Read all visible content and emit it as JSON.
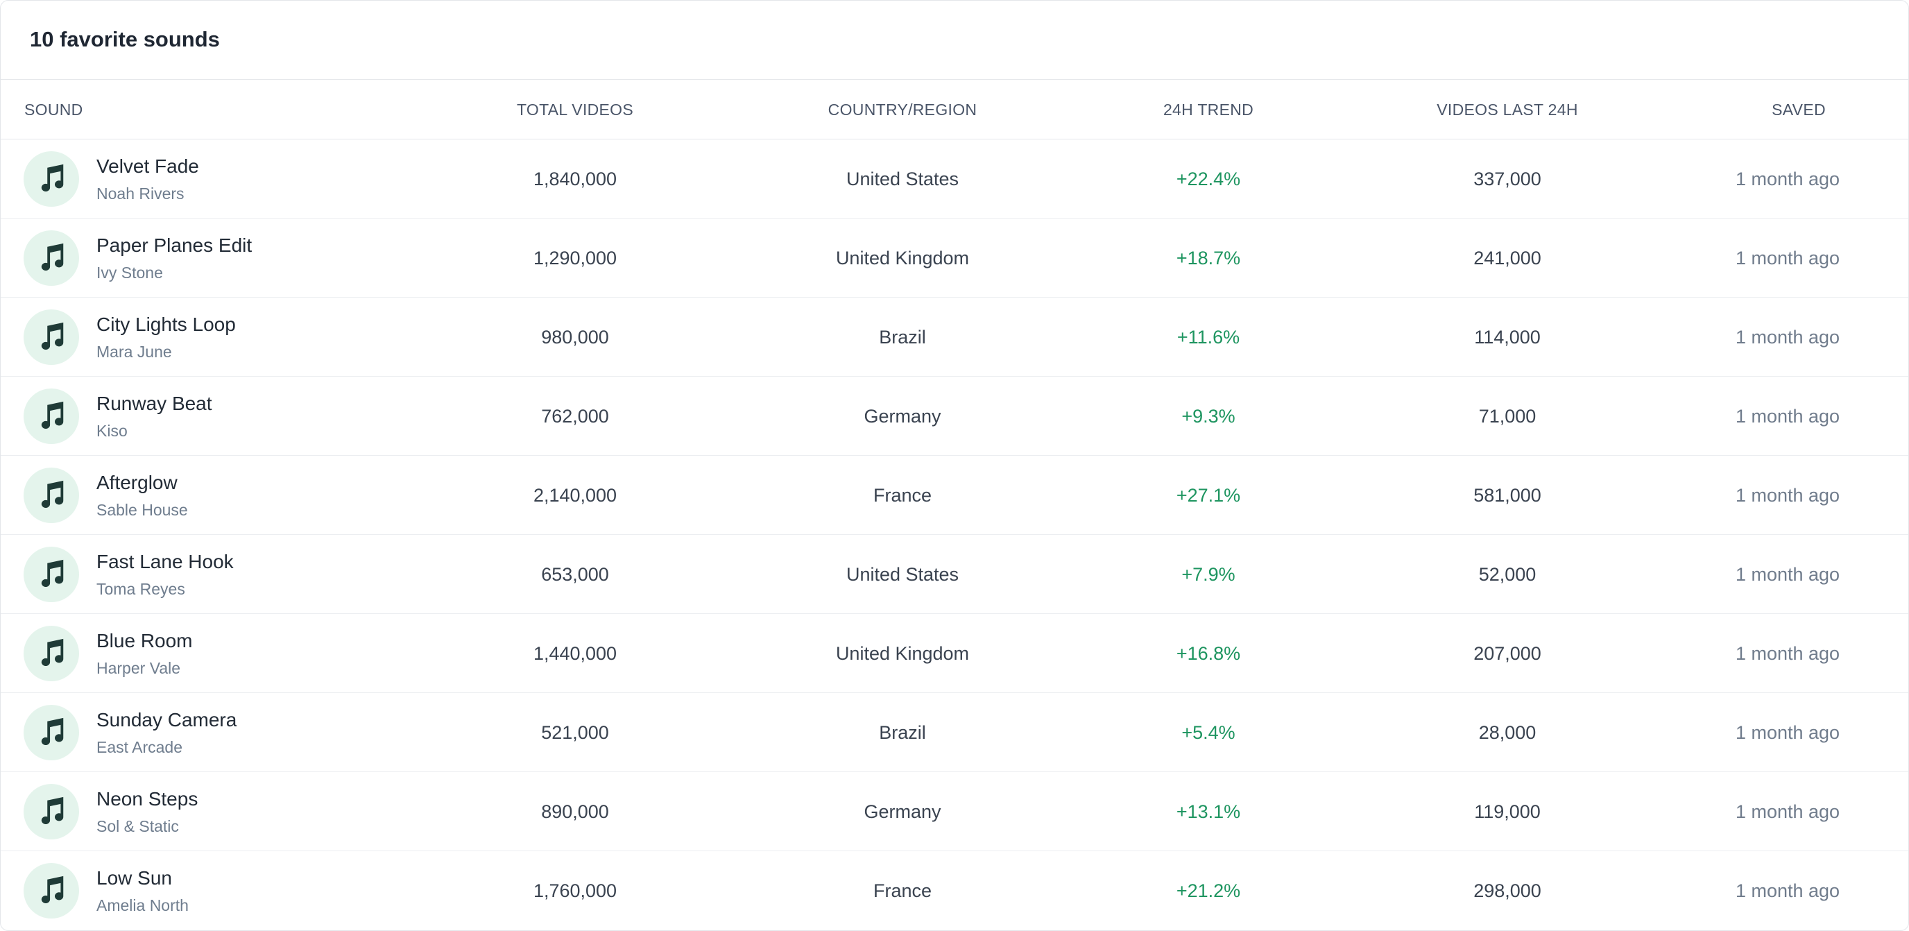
{
  "header": {
    "title": "10 favorite sounds"
  },
  "columns": {
    "sound": "SOUND",
    "total_videos": "TOTAL VIDEOS",
    "country": "COUNTRY/REGION",
    "trend": "24H TREND",
    "last24": "VIDEOS LAST 24H",
    "saved": "SAVED"
  },
  "colors": {
    "trend_positive": "#1e9560",
    "icon_bg": "#e4f4ec",
    "icon_fg": "#1f3b37"
  },
  "icon": "music-note-icon",
  "rows": [
    {
      "name": "Velvet Fade",
      "artist": "Noah Rivers",
      "total_videos": "1,840,000",
      "country": "United States",
      "trend": "+22.4%",
      "last24": "337,000",
      "saved": "1 month ago"
    },
    {
      "name": "Paper Planes Edit",
      "artist": "Ivy Stone",
      "total_videos": "1,290,000",
      "country": "United Kingdom",
      "trend": "+18.7%",
      "last24": "241,000",
      "saved": "1 month ago"
    },
    {
      "name": "City Lights Loop",
      "artist": "Mara June",
      "total_videos": "980,000",
      "country": "Brazil",
      "trend": "+11.6%",
      "last24": "114,000",
      "saved": "1 month ago"
    },
    {
      "name": "Runway Beat",
      "artist": "Kiso",
      "total_videos": "762,000",
      "country": "Germany",
      "trend": "+9.3%",
      "last24": "71,000",
      "saved": "1 month ago"
    },
    {
      "name": "Afterglow",
      "artist": "Sable House",
      "total_videos": "2,140,000",
      "country": "France",
      "trend": "+27.1%",
      "last24": "581,000",
      "saved": "1 month ago"
    },
    {
      "name": "Fast Lane Hook",
      "artist": "Toma Reyes",
      "total_videos": "653,000",
      "country": "United States",
      "trend": "+7.9%",
      "last24": "52,000",
      "saved": "1 month ago"
    },
    {
      "name": "Blue Room",
      "artist": "Harper Vale",
      "total_videos": "1,440,000",
      "country": "United Kingdom",
      "trend": "+16.8%",
      "last24": "207,000",
      "saved": "1 month ago"
    },
    {
      "name": "Sunday Camera",
      "artist": "East Arcade",
      "total_videos": "521,000",
      "country": "Brazil",
      "trend": "+5.4%",
      "last24": "28,000",
      "saved": "1 month ago"
    },
    {
      "name": "Neon Steps",
      "artist": "Sol & Static",
      "total_videos": "890,000",
      "country": "Germany",
      "trend": "+13.1%",
      "last24": "119,000",
      "saved": "1 month ago"
    },
    {
      "name": "Low Sun",
      "artist": "Amelia North",
      "total_videos": "1,760,000",
      "country": "France",
      "trend": "+21.2%",
      "last24": "298,000",
      "saved": "1 month ago"
    }
  ]
}
